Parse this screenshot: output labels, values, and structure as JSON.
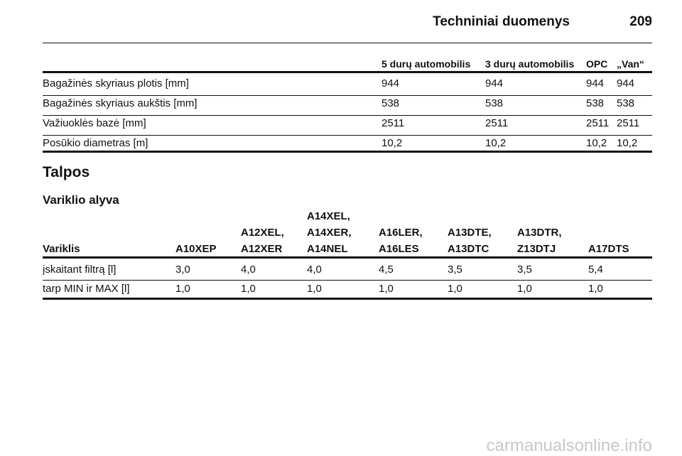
{
  "header": {
    "title": "Techniniai duomenys",
    "page": "209"
  },
  "table1": {
    "columns": [
      "5 durų automobilis",
      "3 durų automobilis",
      "OPC",
      "„Van“"
    ],
    "rows": [
      [
        "Bagažinės skyriaus plotis [mm]",
        "944",
        "944",
        "944",
        "944"
      ],
      [
        "Bagažinės skyriaus aukštis [mm]",
        "538",
        "538",
        "538",
        "538"
      ],
      [
        "Važiuoklės bazė [mm]",
        "2511",
        "2511",
        "2511",
        "2511"
      ],
      [
        "Posūkio diametras [m]",
        "10,2",
        "10,2",
        "10,2",
        "10,2"
      ]
    ]
  },
  "section": {
    "title": "Talpos",
    "subtitle": "Variklio alyva"
  },
  "table2": {
    "columns": [
      [
        "Variklis"
      ],
      [
        "A10XEP"
      ],
      [
        "A12XEL,",
        "A12XER"
      ],
      [
        "A14XEL,",
        "A14XER,",
        "A14NEL"
      ],
      [
        "A16LER,",
        "A16LES"
      ],
      [
        "A13DTE,",
        "A13DTC"
      ],
      [
        "A13DTR,",
        "Z13DTJ"
      ],
      [
        "A17DTS"
      ]
    ],
    "rows": [
      [
        "įskaitant filtrą [l]",
        "3,0",
        "4,0",
        "4,0",
        "4,5",
        "3,5",
        "3,5",
        "5,4"
      ],
      [
        "tarp MIN ir MAX [l]",
        "1,0",
        "1,0",
        "1,0",
        "1,0",
        "1,0",
        "1,0",
        "1,0"
      ]
    ]
  },
  "watermark": "carmanualsonline.info"
}
